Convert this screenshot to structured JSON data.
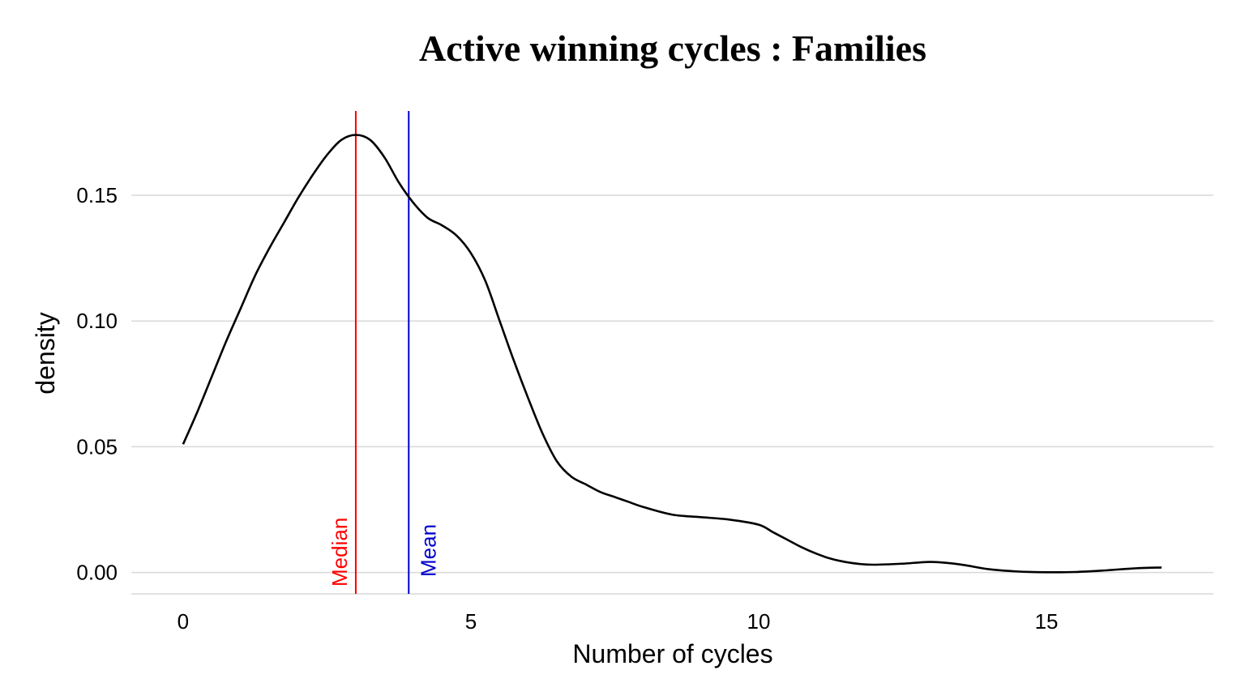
{
  "chart_data": {
    "type": "line",
    "title": "Active winning cycles : Families",
    "xlabel": "Number of cycles",
    "ylabel": "density",
    "xlim": [
      -0.9,
      17.9
    ],
    "ylim": [
      -0.0085,
      0.1835
    ],
    "x_ticks": [
      0,
      5,
      10,
      15
    ],
    "y_ticks": [
      0.0,
      0.05,
      0.1,
      0.15
    ],
    "y_tick_labels": [
      "0.00",
      "0.05",
      "0.10",
      "0.15"
    ],
    "grid": "horizontal",
    "series": [
      {
        "color": "#000000",
        "x": [
          0,
          0.25,
          0.5,
          0.75,
          1.0,
          1.25,
          1.5,
          1.75,
          2.0,
          2.25,
          2.5,
          2.75,
          3.0,
          3.25,
          3.5,
          3.75,
          4.0,
          4.25,
          4.5,
          4.75,
          5.0,
          5.25,
          5.5,
          5.75,
          6.0,
          6.25,
          6.5,
          6.75,
          7.0,
          7.25,
          7.5,
          7.75,
          8.0,
          8.5,
          9.0,
          9.5,
          10.0,
          10.25,
          10.5,
          10.75,
          11.0,
          11.25,
          11.5,
          11.75,
          12.0,
          12.5,
          13.0,
          13.5,
          14.0,
          14.5,
          15.0,
          15.5,
          16.0,
          16.5,
          17.0
        ],
        "y": [
          0.051,
          0.064,
          0.078,
          0.092,
          0.105,
          0.118,
          0.129,
          0.139,
          0.149,
          0.158,
          0.166,
          0.172,
          0.174,
          0.172,
          0.165,
          0.155,
          0.147,
          0.141,
          0.138,
          0.134,
          0.127,
          0.116,
          0.1,
          0.084,
          0.069,
          0.055,
          0.044,
          0.038,
          0.035,
          0.032,
          0.03,
          0.028,
          0.026,
          0.023,
          0.022,
          0.021,
          0.019,
          0.016,
          0.013,
          0.01,
          0.0075,
          0.0055,
          0.0042,
          0.0034,
          0.0031,
          0.0035,
          0.0042,
          0.0032,
          0.0013,
          0.0004,
          0.0001,
          0.0002,
          0.0008,
          0.0016,
          0.002
        ]
      }
    ],
    "reference_lines": [
      {
        "label": "Median",
        "x": 3.0,
        "color": "#ff0000"
      },
      {
        "label": "Mean",
        "x": 3.92,
        "color": "#0000cc"
      }
    ]
  }
}
